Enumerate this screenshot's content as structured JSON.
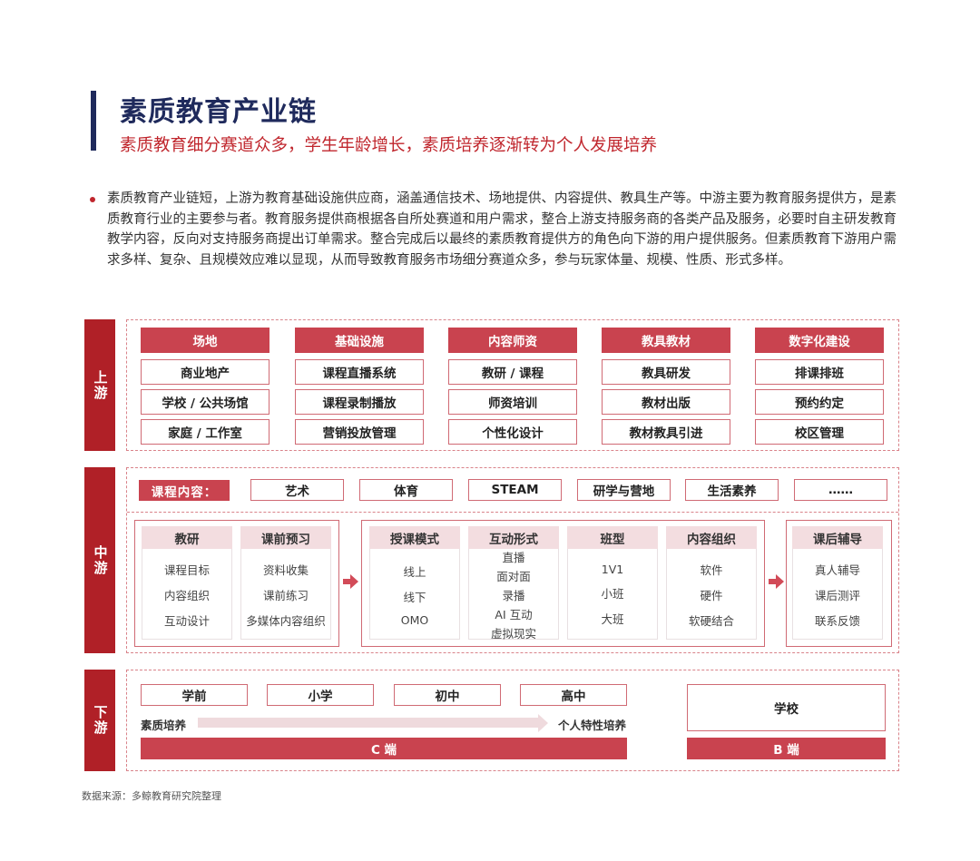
{
  "title": "素质教育产业链",
  "subtitle": "素质教育细分赛道众多，学生年龄增长，素质培养逐渐转为个人发展培养",
  "paragraph": "素质教育产业链短，上游为教育基础设施供应商，涵盖通信技术、场地提供、内容提供、教具生产等。中游主要为教育服务提供方，是素质教育行业的主要参与者。教育服务提供商根据各自所处赛道和用户需求，整合上游支持服务商的各类产品及服务，必要时自主研发教育教学内容，反向对支持服务商提出订单需求。整合完成后以最终的素质教育提供方的角色向下游的用户提供服务。但素质教育下游用户需求多样、复杂、且规模效应难以显现，从而导致教育服务市场细分赛道众多，参与玩家体量、规模、性质、形式多样。",
  "colors": {
    "navy": "#1f2a5c",
    "red": "#c0262d",
    "side": "#b02027",
    "header": "#c9434f"
  },
  "upstream": {
    "label": "上游",
    "columns": [
      {
        "header": "场地",
        "items": [
          "商业地产",
          "学校 / 公共场馆",
          "家庭 / 工作室"
        ]
      },
      {
        "header": "基础设施",
        "items": [
          "课程直播系统",
          "课程录制播放",
          "营销投放管理"
        ]
      },
      {
        "header": "内容师资",
        "items": [
          "教研 / 课程",
          "师资培训",
          "个性化设计"
        ]
      },
      {
        "header": "教具教材",
        "items": [
          "教具研发",
          "教材出版",
          "教材教具引进"
        ]
      },
      {
        "header": "数字化建设",
        "items": [
          "排课排班",
          "预约约定",
          "校区管理"
        ]
      }
    ]
  },
  "midstream": {
    "label": "中游",
    "course_label": "课程内容：",
    "courses": [
      "艺术",
      "体育",
      "STEAM",
      "研学与营地",
      "生活素养",
      "……"
    ],
    "columns": [
      {
        "header": "教研",
        "items": [
          "课程目标",
          "内容组织",
          "互动设计"
        ]
      },
      {
        "header": "课前预习",
        "items": [
          "资料收集",
          "课前练习",
          "多媒体内容组织"
        ]
      },
      {
        "header": "授课模式",
        "items": [
          "线上",
          "线下",
          "OMO"
        ]
      },
      {
        "header": "互动形式",
        "items": [
          "直播",
          "面对面",
          "录播",
          "AI 互动",
          "虚拟现实"
        ]
      },
      {
        "header": "班型",
        "items": [
          "1V1",
          "小班",
          "大班"
        ]
      },
      {
        "header": "内容组织",
        "items": [
          "软件",
          "硬件",
          "软硬结合"
        ]
      },
      {
        "header": "课后辅导",
        "items": [
          "真人辅导",
          "课后测评",
          "联系反馈"
        ]
      }
    ]
  },
  "downstream": {
    "label": "下游",
    "stages": [
      "学前",
      "小学",
      "初中",
      "高中"
    ],
    "arrow_start": "素质培养",
    "arrow_end": "个人特性培养",
    "school": "学校",
    "c_end": "C 端",
    "b_end": "B 端"
  },
  "source": "数据来源：多鲸教育研究院整理"
}
